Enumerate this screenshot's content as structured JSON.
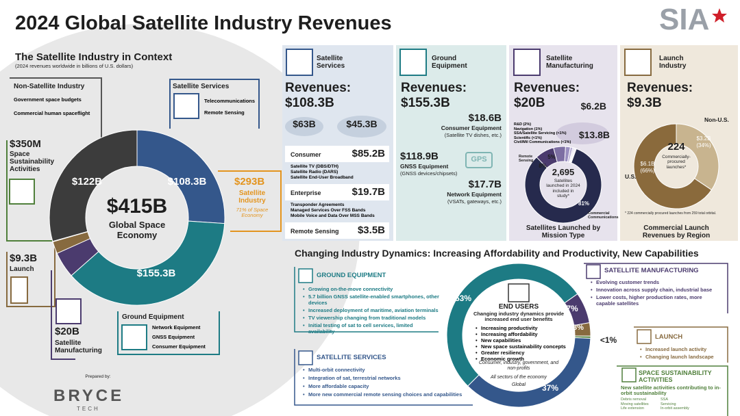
{
  "title": "2024 Global Satellite Industry Revenues",
  "logo": "SIA",
  "context": {
    "title": "The Satellite Industry in Context",
    "subtitle": "(2024 revenues worldwide in billions of U.S. dollars)",
    "total": "$415B",
    "total_label": "Global Space Economy",
    "donut": {
      "type": "pie",
      "values": [
        108.3,
        155.3,
        20,
        9.3,
        0.35,
        122
      ],
      "value_labels": [
        "$108.3B",
        "$155.3B",
        "$20B",
        "$9.3B",
        "$350M",
        "$122B"
      ],
      "colors": [
        "#34578b",
        "#1d7b84",
        "#4b3b6e",
        "#876a3f",
        "#4f7f3a",
        "#3c3c3c"
      ]
    },
    "non_satellite": {
      "title": "Non-Satellite Industry",
      "items": [
        "Government space budgets",
        "Commercial human spaceflight"
      ]
    },
    "sustainability": "Space Sustainability Activities",
    "launch": "Launch",
    "manufacturing": "Satellite Manufacturing",
    "ground": {
      "title": "Ground Equipment",
      "items": [
        "Network Equipment",
        "GNSS Equipment",
        "Consumer Equipment"
      ]
    },
    "services": {
      "title": "Satellite Services",
      "items": [
        "Telecommunications",
        "Remote Sensing"
      ]
    },
    "satellite_industry": {
      "value": "$293B",
      "title": "Satellite Industry",
      "note": "71% of Space Economy"
    }
  },
  "prepared_by": "Prepared by:",
  "brand": {
    "name": "BRYCE",
    "sub": "TECH"
  },
  "panels": {
    "services": {
      "title": "Satellite Services",
      "revenue_label": "Revenues:",
      "revenue": "$108.3B",
      "regions": [
        "$63B",
        "$45.3B"
      ],
      "rows": [
        {
          "name": "Consumer",
          "value": "$85.2B",
          "items": [
            "Satellite TV (DBS/DTH)",
            "Satellite Radio (DARS)",
            "Satellite End-User Broadband"
          ]
        },
        {
          "name": "Enterprise",
          "value": "$19.7B",
          "items": [
            "Transponder Agreements",
            "Managed Services Over FSS Bands",
            "Mobile Voice and Data Over MSS Bands"
          ]
        },
        {
          "name": "Remote Sensing",
          "value": "$3.5B"
        }
      ]
    },
    "ground": {
      "title": "Ground Equipment",
      "revenue_label": "Revenues:",
      "revenue": "$155.3B",
      "icon_text": "GPS",
      "segments": [
        {
          "value": "$18.6B",
          "name": "Consumer Equipment",
          "note": "(Satellite TV dishes, etc.)"
        },
        {
          "value": "$118.9B",
          "name": "GNSS Equipment",
          "note": "(GNSS devices/chipsets)"
        },
        {
          "value": "$17.7B",
          "name": "Network Equipment",
          "note": "(VSATs, gateways, etc.)"
        }
      ]
    },
    "manufacturing": {
      "title": "Satellite Manufacturing",
      "revenue_label": "Revenues:",
      "revenue": "$20B",
      "regions": [
        "$6.2B",
        "$13.8B"
      ],
      "legend": [
        "R&D (2%)",
        "Navigation (1%)",
        "SSA/Satellite Servicing (<1%)",
        "Scientific (<1%)",
        "Civil/Mil Communications (<1%)"
      ],
      "donut": {
        "type": "pie",
        "values": [
          81,
          8,
          5,
          2,
          1,
          0.5,
          0.5,
          0.5
        ],
        "value_labels": [
          "81%",
          "8%",
          "5%",
          null,
          null,
          null,
          null,
          null
        ],
        "colors": [
          "#262a4d",
          "#4b3b6e",
          "#7d6fa3",
          "#9a8fc0",
          "#b7aed4",
          "#cfc8e4",
          "#ddd8ec",
          "#e9e6f3"
        ]
      },
      "center_value": "2,695",
      "center_label": "Satellites launched in 2024 included in study*",
      "remote_sensing": "Remote Sensing",
      "commercial": "Commercial Communications",
      "caption": "Satellites Launched by Mission Type"
    },
    "launch": {
      "title": "Launch Industry",
      "revenue_label": "Revenues:",
      "revenue": "$9.3B",
      "donut": {
        "type": "pie",
        "values": [
          3.2,
          6.1
        ],
        "value_labels": [
          "$3.2B",
          "$6.1B"
        ],
        "shares": [
          "(34%)",
          "(66%)"
        ],
        "names": [
          "Non-U.S.",
          "U.S."
        ],
        "colors": [
          "#c8b48f",
          "#8a6a3c"
        ]
      },
      "center_value": "224",
      "center_label": "Commercially-procured launches*",
      "footnote": "* 224 commercially procured launches from 259 total orbital.",
      "caption": "Commercial Launch Revenues by Region"
    }
  },
  "dynamics": {
    "title": "Changing Industry Dynamics: Increasing Affordability and Productivity, New Capabilities",
    "ground": {
      "title": "GROUND EQUIPMENT",
      "items": [
        "Growing on-the-move connectivity",
        "5.7 billion GNSS satellite-enabled smartphones, other devices",
        "Increased deployment of maritime, aviation terminals",
        "TV viewership changing from traditional models",
        "Initial testing of sat to cell services, limited availability"
      ]
    },
    "services": {
      "title": "SATELLITE SERVICES",
      "items": [
        "Multi-orbit connectivity",
        "Integration of sat, terrestrial networks",
        "More affordable capacity",
        "More new commercial remote sensing choices and capabilities"
      ]
    },
    "manufacturing": {
      "title": "SATELLITE MANUFACTURING",
      "items": [
        "Evolving customer trends",
        "Innovation across supply chain, industrial base",
        "Lower costs, higher production rates, more capable satellites"
      ]
    },
    "launch": {
      "title": "LAUNCH",
      "items": [
        "Increased launch activity",
        "Changing launch landscape"
      ]
    },
    "sustainability": {
      "title": "SPACE SUSTAINABILITY ACTIVITIES",
      "lead": "New satellite activities contributing to in-orbit sustainability",
      "items": [
        "Debris removal",
        "SSA",
        "Moving satellites",
        "Servicing",
        "Life extension",
        "In-orbit assembly"
      ]
    },
    "end_users": {
      "title": "END USERS",
      "lead": "Changing industry dynamics provide increased end user benefits",
      "benefits": [
        "Increasing productivity",
        "Increasing affordability",
        "New capabilities",
        "New space sustainability concepts",
        "Greater resiliency",
        "Economic growth"
      ],
      "who": "Consumer, industry, government, and non-profits",
      "sectors": "All sectors of the economy",
      "scope": "Global"
    },
    "ring": {
      "type": "pie",
      "values": [
        53,
        7,
        3,
        0.5,
        37
      ],
      "value_labels": [
        "53%",
        "7%",
        "3%",
        "<1%",
        "37%"
      ],
      "colors": [
        "#1d7b84",
        "#4b3b6e",
        "#876a3f",
        "#4f7f3a",
        "#34578b"
      ]
    }
  }
}
